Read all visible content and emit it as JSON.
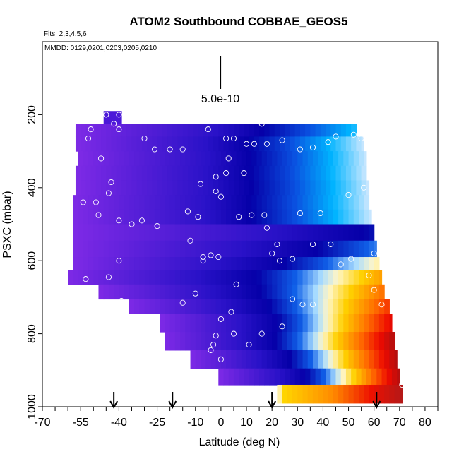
{
  "chart_data": {
    "type": "heatmap",
    "title": "ATOM2 Southbound COBBAE_GEOS5",
    "flights_label": "Flts: 2,3,4,5,6",
    "mmdd_label": "MMDD: 0129,0201,0203,0205,0210",
    "scale_label": "5.0e-10",
    "xlabel": "Latitude (deg N)",
    "ylabel": "PSXC (mbar)",
    "xlim": [
      -70,
      85
    ],
    "ylim": [
      1000,
      0
    ],
    "x_ticks": [
      "-70",
      "-55",
      "-40",
      "-25",
      "-10",
      "0",
      "10",
      "20",
      "30",
      "40",
      "50",
      "60",
      "70",
      "80"
    ],
    "x_tick_values": [
      -70,
      -55,
      -40,
      -25,
      -10,
      0,
      10,
      20,
      30,
      40,
      50,
      60,
      70,
      80
    ],
    "y_ticks": [
      "200",
      "400",
      "600",
      "800",
      "1000"
    ],
    "y_tick_values": [
      200,
      400,
      600,
      800,
      1000
    ],
    "arrows_lat": [
      -42,
      -19,
      20,
      61
    ],
    "colors": {
      "purple": "#7a22e8",
      "blue": "#1a10c0",
      "navy": "#0400a0",
      "cyan": "#00a8ff",
      "yellow": "#ffd000",
      "red": "#ee1100",
      "darkred": "#b01010"
    },
    "bands": [
      {
        "p": [
          190,
          225
        ],
        "lat": [
          -46,
          -39
        ],
        "pal": "blue",
        "k": 0.0
      },
      {
        "p": [
          225,
          260
        ],
        "lat": [
          -57,
          53
        ],
        "pal": "pur2cyan",
        "k": 0.9
      },
      {
        "p": [
          260,
          300
        ],
        "lat": [
          -57,
          56
        ],
        "pal": "pur2cyan",
        "k": 1.0
      },
      {
        "p": [
          300,
          340
        ],
        "lat": [
          -56,
          57
        ],
        "pal": "pur2cyan",
        "k": 1.0
      },
      {
        "p": [
          340,
          380
        ],
        "lat": [
          -57,
          57
        ],
        "pal": "pur2cyan",
        "k": 1.0
      },
      {
        "p": [
          380,
          420
        ],
        "lat": [
          -57,
          58
        ],
        "pal": "pur2cyan",
        "k": 1.0
      },
      {
        "p": [
          420,
          460
        ],
        "lat": [
          -58,
          58
        ],
        "pal": "pur2cyan",
        "k": 1.0
      },
      {
        "p": [
          460,
          500
        ],
        "lat": [
          -58,
          59
        ],
        "pal": "pur2cyan",
        "k": 1.0
      },
      {
        "p": [
          500,
          545
        ],
        "lat": [
          -58,
          60
        ],
        "pal": "full",
        "k": 0.5
      },
      {
        "p": [
          545,
          590
        ],
        "lat": [
          -58,
          61
        ],
        "pal": "full",
        "k": 0.6
      },
      {
        "p": [
          590,
          625
        ],
        "lat": [
          -58,
          62
        ],
        "pal": "full",
        "k": 0.7
      },
      {
        "p": [
          625,
          665
        ],
        "lat": [
          -60,
          63
        ],
        "pal": "full",
        "k": 0.8
      },
      {
        "p": [
          665,
          705
        ],
        "lat": [
          -48,
          64
        ],
        "pal": "full",
        "k": 0.85
      },
      {
        "p": [
          705,
          745
        ],
        "lat": [
          -36,
          66
        ],
        "pal": "full",
        "k": 0.9
      },
      {
        "p": [
          745,
          795
        ],
        "lat": [
          -24,
          67
        ],
        "pal": "full",
        "k": 0.95
      },
      {
        "p": [
          795,
          845
        ],
        "lat": [
          -22,
          68
        ],
        "pal": "full",
        "k": 1.0
      },
      {
        "p": [
          845,
          895
        ],
        "lat": [
          -12,
          69
        ],
        "pal": "full",
        "k": 1.0
      },
      {
        "p": [
          895,
          940
        ],
        "lat": [
          -1,
          70
        ],
        "pal": "full",
        "k": 1.0
      },
      {
        "p": [
          940,
          990
        ],
        "lat": [
          22,
          71
        ],
        "pal": "warm",
        "k": 1.0
      }
    ],
    "obs_points": [
      [
        -45,
        200
      ],
      [
        -40,
        200
      ],
      [
        -42,
        225
      ],
      [
        -51,
        240
      ],
      [
        -40,
        240
      ],
      [
        -52,
        265
      ],
      [
        -30,
        265
      ],
      [
        -26,
        295
      ],
      [
        -20,
        295
      ],
      [
        -15,
        295
      ],
      [
        -5,
        240
      ],
      [
        2,
        265
      ],
      [
        5,
        265
      ],
      [
        10,
        280
      ],
      [
        13,
        280
      ],
      [
        3,
        320
      ],
      [
        -2,
        370
      ],
      [
        -8,
        390
      ],
      [
        -2,
        410
      ],
      [
        0,
        425
      ],
      [
        -47,
        320
      ],
      [
        -43,
        385
      ],
      [
        -44,
        415
      ],
      [
        -54,
        440
      ],
      [
        -49,
        440
      ],
      [
        -48,
        475
      ],
      [
        -40,
        490
      ],
      [
        -31,
        490
      ],
      [
        -35,
        500
      ],
      [
        -25,
        505
      ],
      [
        -13,
        465
      ],
      [
        -9,
        480
      ],
      [
        7,
        480
      ],
      [
        12,
        475
      ],
      [
        17,
        475
      ],
      [
        -40,
        600
      ],
      [
        -44,
        645
      ],
      [
        -53,
        650
      ],
      [
        -55,
        680
      ],
      [
        -52,
        690
      ],
      [
        -39,
        710
      ],
      [
        -15,
        715
      ],
      [
        -4,
        585
      ],
      [
        -1,
        590
      ],
      [
        -7,
        590
      ],
      [
        -10,
        690
      ],
      [
        6,
        665
      ],
      [
        4,
        740
      ],
      [
        0,
        760
      ],
      [
        5,
        800
      ],
      [
        -2,
        805
      ],
      [
        -3,
        830
      ],
      [
        -4,
        845
      ],
      [
        0,
        870
      ],
      [
        11,
        830
      ],
      [
        16,
        800
      ],
      [
        24,
        780
      ],
      [
        28,
        705
      ],
      [
        32,
        720
      ],
      [
        36,
        720
      ],
      [
        22,
        555
      ],
      [
        18,
        510
      ],
      [
        23,
        600
      ],
      [
        20,
        580
      ],
      [
        28,
        595
      ],
      [
        36,
        555
      ],
      [
        43,
        555
      ],
      [
        31,
        470
      ],
      [
        39,
        470
      ],
      [
        50,
        420
      ],
      [
        56,
        400
      ],
      [
        45,
        260
      ],
      [
        52,
        255
      ],
      [
        55,
        265
      ],
      [
        42,
        275
      ],
      [
        36,
        290
      ],
      [
        31,
        295
      ],
      [
        24,
        270
      ],
      [
        18,
        280
      ],
      [
        16,
        225
      ],
      [
        -12,
        545
      ],
      [
        -7,
        600
      ],
      [
        9,
        360
      ],
      [
        2,
        360
      ],
      [
        47,
        610
      ],
      [
        51,
        595
      ],
      [
        58,
        640
      ],
      [
        60,
        680
      ],
      [
        63,
        720
      ],
      [
        71,
        940
      ],
      [
        60,
        580
      ]
    ]
  }
}
